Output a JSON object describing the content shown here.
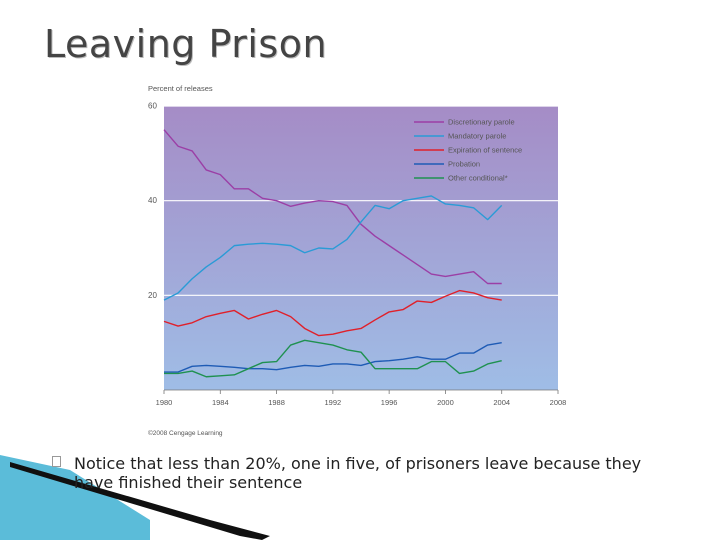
{
  "slide": {
    "title": "Leaving Prison",
    "bullet": "Notice that less than 20%, one in five, of prisoners leave because they have finished their sentence"
  },
  "colors": {
    "bg_top": "#a58cc6",
    "bg_bottom": "#9fbde6",
    "discretionary": "#9b3fa6",
    "mandatory": "#2a9bd6",
    "expiration": "#e0202a",
    "probation": "#1e5bb5",
    "other": "#1f9150",
    "deco_dark": "#101010",
    "deco_blue": "#5bbcd9"
  },
  "chart_data": {
    "type": "line",
    "ylabel": "Percent of releases",
    "ylim": [
      0,
      60
    ],
    "yticks": [
      20,
      40,
      60
    ],
    "xlim": [
      1980,
      2008
    ],
    "xticks": [
      1980,
      1984,
      1988,
      1992,
      1996,
      2000,
      2004,
      2008
    ],
    "credit": "©2008 Cengage Learning",
    "x": [
      1980,
      1981,
      1982,
      1983,
      1984,
      1985,
      1986,
      1987,
      1988,
      1989,
      1990,
      1991,
      1992,
      1993,
      1994,
      1995,
      1996,
      1997,
      1998,
      1999,
      2000,
      2001,
      2002,
      2003,
      2004
    ],
    "series": [
      {
        "name": "Discretionary parole",
        "key": "discretionary",
        "values": [
          55,
          51.5,
          50.5,
          46.5,
          45.5,
          42.5,
          42.5,
          40.5,
          40,
          38.8,
          39.5,
          40,
          39.8,
          39,
          35,
          32.5,
          30.5,
          28.5,
          26.5,
          24.5,
          24,
          24.5,
          25,
          22.5,
          22.5
        ]
      },
      {
        "name": "Mandatory parole",
        "key": "mandatory",
        "values": [
          19,
          20.5,
          23.5,
          26,
          28,
          30.5,
          30.8,
          31,
          30.8,
          30.5,
          29,
          30,
          29.8,
          31.8,
          35.5,
          39,
          38.3,
          40,
          40.5,
          41,
          39.3,
          39,
          38.5,
          36,
          39
        ]
      },
      {
        "name": "Expiration of sentence",
        "key": "expiration",
        "values": [
          14.5,
          13.5,
          14.2,
          15.5,
          16.2,
          16.8,
          15,
          16,
          16.8,
          15.5,
          13,
          11.5,
          11.8,
          12.5,
          13,
          14.8,
          16.5,
          17,
          18.8,
          18.5,
          19.8,
          21,
          20.5,
          19.5,
          19
        ]
      },
      {
        "name": "Probation",
        "key": "probation",
        "values": [
          3.8,
          3.8,
          5,
          5.2,
          5,
          4.8,
          4.5,
          4.5,
          4.3,
          4.8,
          5.2,
          5,
          5.5,
          5.5,
          5.2,
          6,
          6.2,
          6.5,
          7,
          6.5,
          6.5,
          7.8,
          7.8,
          9.5,
          10
        ]
      },
      {
        "name": "Other conditional*",
        "key": "other",
        "values": [
          3.5,
          3.5,
          4,
          2.8,
          3,
          3.2,
          4.5,
          5.8,
          6,
          9.5,
          10.5,
          10,
          9.5,
          8.5,
          8,
          4.5,
          4.5,
          4.5,
          4.5,
          6,
          6,
          3.5,
          4,
          5.5,
          6.2
        ]
      }
    ]
  }
}
